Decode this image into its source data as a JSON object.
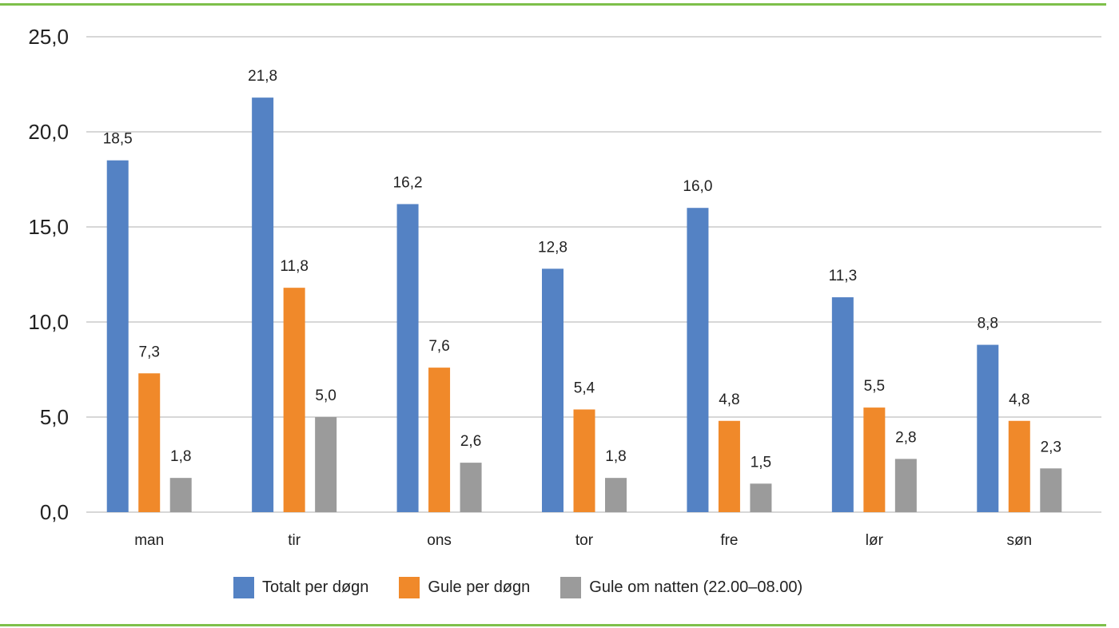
{
  "chart_data": {
    "type": "bar",
    "categories": [
      "man",
      "tir",
      "ons",
      "tor",
      "fre",
      "lør",
      "søn"
    ],
    "series": [
      {
        "name": "Totalt per døgn",
        "color": "#5482c4",
        "values": [
          18.5,
          21.8,
          16.2,
          12.8,
          16.0,
          11.3,
          8.8
        ],
        "labels": [
          "18,5",
          "21,8",
          "16,2",
          "12,8",
          "16,0",
          "11,3",
          "8,8"
        ]
      },
      {
        "name": "Gule per døgn",
        "color": "#f0892a",
        "values": [
          7.3,
          11.8,
          7.6,
          5.4,
          4.8,
          5.5,
          4.8
        ],
        "labels": [
          "7,3",
          "11,8",
          "7,6",
          "5,4",
          "4,8",
          "5,5",
          "4,8"
        ]
      },
      {
        "name": "Gule om natten (22.00–08.00)",
        "color": "#9b9b9b",
        "values": [
          1.8,
          5.0,
          2.6,
          1.8,
          1.5,
          2.8,
          2.3
        ],
        "labels": [
          "1,8",
          "5,0",
          "2,6",
          "1,8",
          "1,5",
          "2,8",
          "2,3"
        ]
      }
    ],
    "ylim": [
      0,
      25
    ],
    "yticks": [
      0,
      5,
      10,
      15,
      20,
      25
    ],
    "ytick_labels": [
      "0,0",
      "5,0",
      "10,0",
      "15,0",
      "20,0",
      "25,0"
    ],
    "grid": true,
    "legend_position": "bottom"
  },
  "colors": {
    "accent_rule": "#7ec04a",
    "gridline": "#bfbfbf"
  }
}
